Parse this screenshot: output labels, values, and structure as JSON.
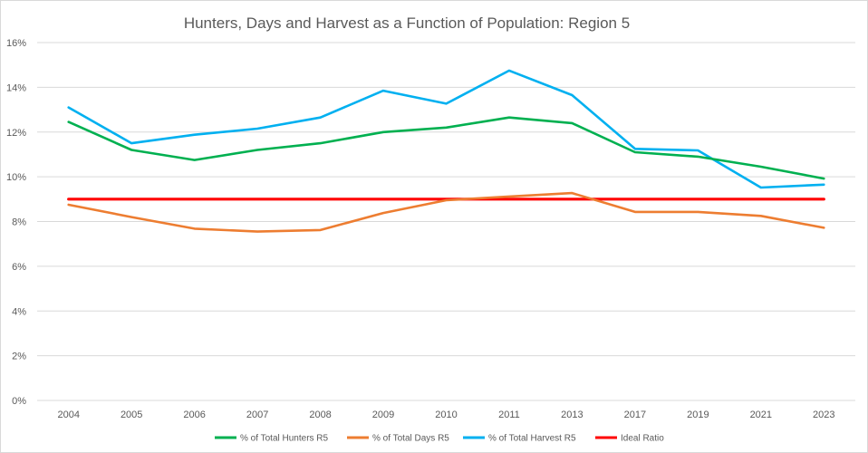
{
  "chart_data": {
    "type": "line",
    "title": "Hunters, Days and Harvest as a Function of Population: Region 5",
    "xlabel": "",
    "ylabel": "",
    "categories": [
      "2004",
      "2005",
      "2006",
      "2007",
      "2008",
      "2009",
      "2010",
      "2011",
      "2013",
      "2017",
      "2019",
      "2021",
      "2023"
    ],
    "ylim": [
      0,
      16
    ],
    "y_ticks": [
      0,
      2,
      4,
      6,
      8,
      10,
      12,
      14,
      16
    ],
    "y_tick_labels": [
      "0%",
      "2%",
      "4%",
      "6%",
      "8%",
      "10%",
      "12%",
      "14%",
      "16%"
    ],
    "grid": true,
    "legend_position": "bottom",
    "series": [
      {
        "name": "% of Total Hunters R5",
        "color": "#00b050",
        "values": [
          12.45,
          11.2,
          10.75,
          11.2,
          11.5,
          12.0,
          12.2,
          12.65,
          12.4,
          11.1,
          10.9,
          10.45,
          9.92
        ]
      },
      {
        "name": "% of Total Days R5",
        "color": "#ed7d31",
        "values": [
          8.75,
          8.2,
          7.68,
          7.55,
          7.62,
          8.38,
          8.95,
          9.12,
          9.27,
          8.43,
          8.43,
          8.25,
          7.72
        ]
      },
      {
        "name": "% of Total Harvest R5",
        "color": "#00b0f0",
        "values": [
          13.1,
          11.5,
          11.88,
          12.15,
          12.65,
          13.85,
          13.27,
          14.75,
          13.65,
          11.25,
          11.18,
          9.52,
          9.65
        ]
      },
      {
        "name": "Ideal Ratio",
        "color": "#ff0000",
        "values": [
          9,
          9,
          9,
          9,
          9,
          9,
          9,
          9,
          9,
          9,
          9,
          9,
          9
        ]
      }
    ]
  }
}
